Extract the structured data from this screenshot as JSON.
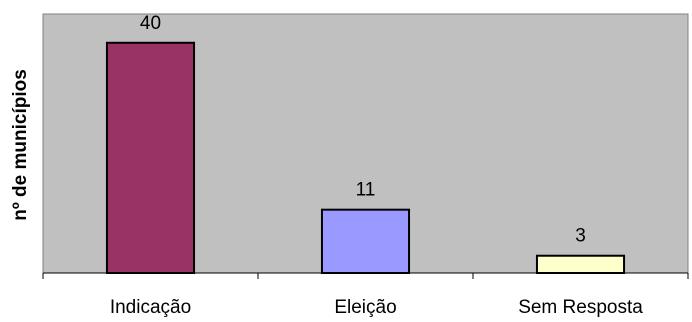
{
  "chart_data": {
    "type": "bar",
    "categories": [
      "Indicação",
      "Eleição",
      "Sem Resposta"
    ],
    "values": [
      40,
      11,
      3
    ],
    "title": "",
    "xlabel": "",
    "ylabel": "nº de municípios",
    "ylim": [
      0,
      45
    ],
    "grid": false,
    "legend": "none",
    "colors": {
      "plot_background": "#c0c0c0",
      "plot_border": "#808080",
      "bar_border": "#000000",
      "bars": [
        "#993366",
        "#9999ff",
        "#ffffcc"
      ]
    }
  }
}
